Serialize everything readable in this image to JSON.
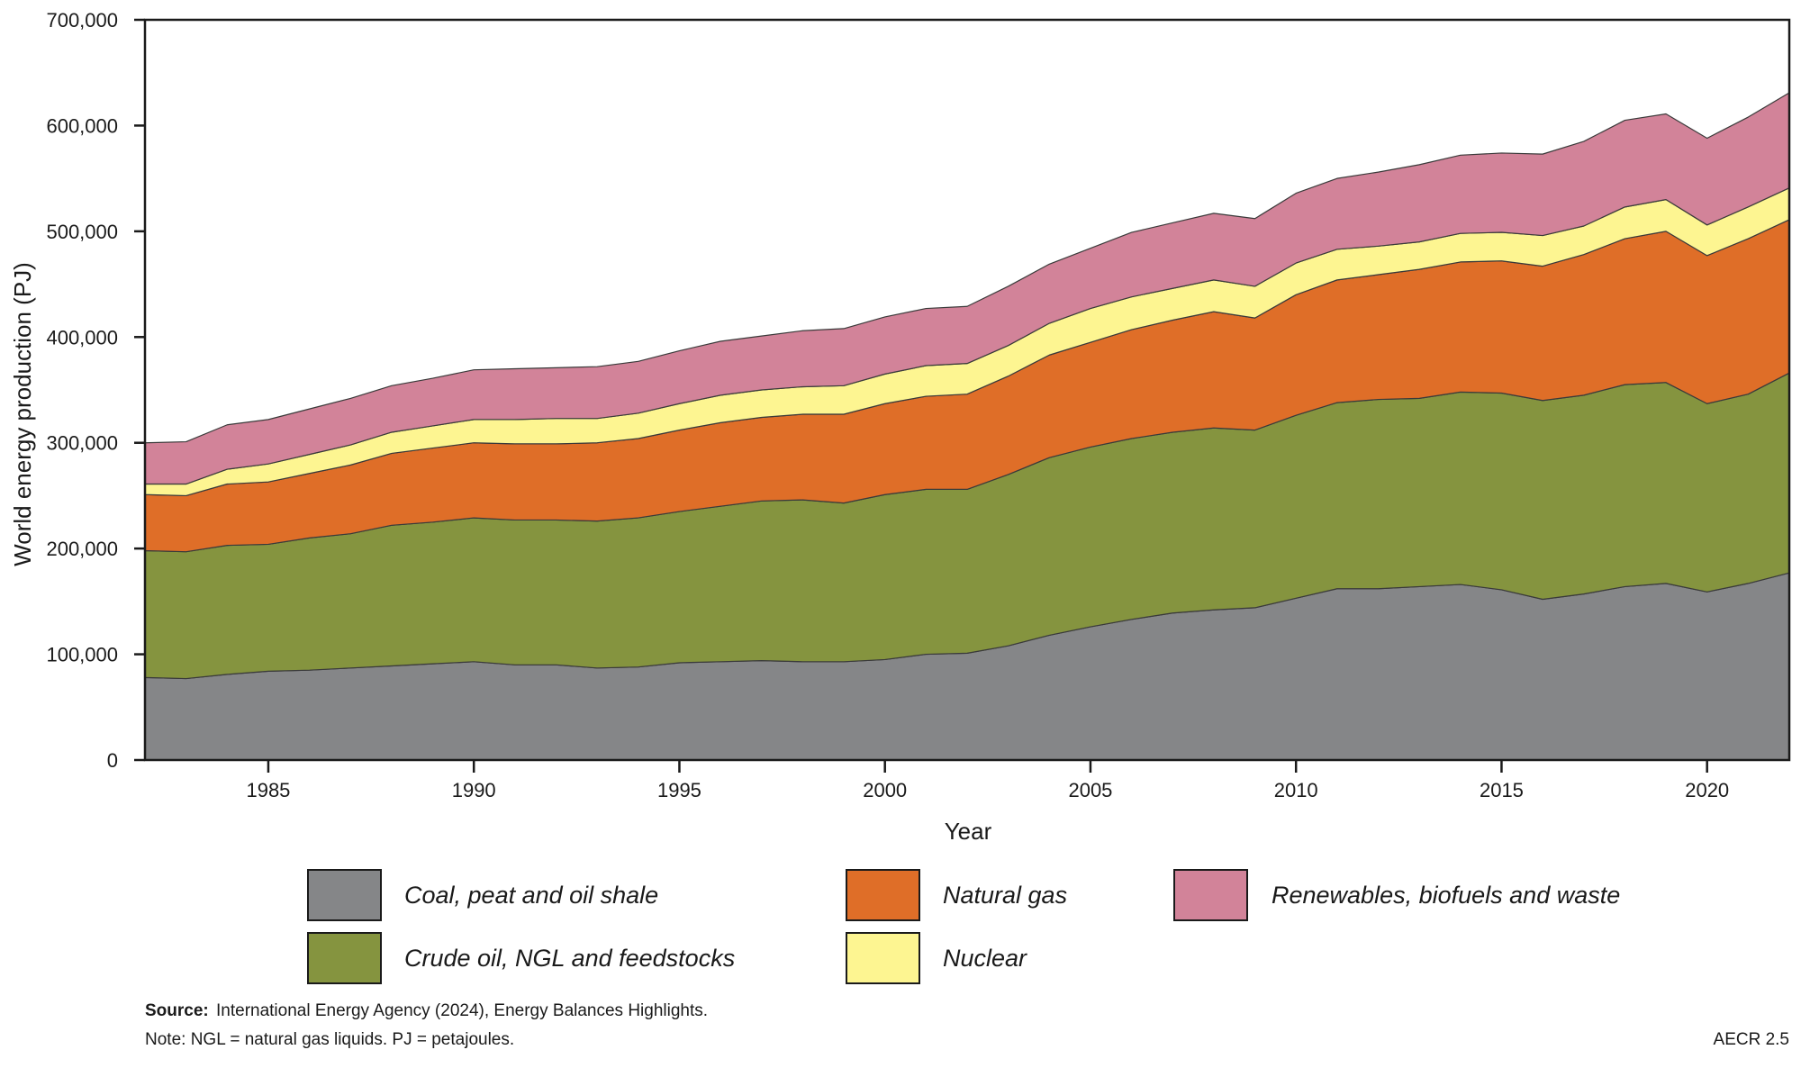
{
  "chart_data": {
    "type": "area",
    "stacked": true,
    "title": "",
    "xlabel": "Year",
    "ylabel": "World energy production (PJ)",
    "xlim": [
      1982,
      2022
    ],
    "ylim": [
      0,
      700000
    ],
    "x_ticks": [
      1985,
      1990,
      1995,
      2000,
      2005,
      2010,
      2015,
      2020
    ],
    "y_ticks": [
      0,
      100000,
      200000,
      300000,
      400000,
      500000,
      600000,
      700000
    ],
    "y_tick_labels": [
      "0",
      "100,000",
      "200,000",
      "300,000",
      "400,000",
      "500,000",
      "600,000",
      "700,000"
    ],
    "grid": false,
    "legend_position": "bottom",
    "x": [
      1982,
      1983,
      1984,
      1985,
      1986,
      1987,
      1988,
      1989,
      1990,
      1991,
      1992,
      1993,
      1994,
      1995,
      1996,
      1997,
      1998,
      1999,
      2000,
      2001,
      2002,
      2003,
      2004,
      2005,
      2006,
      2007,
      2008,
      2009,
      2010,
      2011,
      2012,
      2013,
      2014,
      2015,
      2016,
      2017,
      2018,
      2019,
      2020,
      2021,
      2022
    ],
    "series": [
      {
        "name": "Coal, peat and oil shale",
        "color": "#858688",
        "values": [
          78000,
          77000,
          81000,
          84000,
          85000,
          87000,
          89000,
          91000,
          93000,
          90000,
          90000,
          87000,
          88000,
          92000,
          93000,
          94000,
          93000,
          93000,
          95000,
          100000,
          101000,
          108000,
          118000,
          126000,
          133000,
          139000,
          142000,
          144000,
          153000,
          162000,
          162000,
          164000,
          166000,
          161000,
          152000,
          157000,
          164000,
          167000,
          159000,
          167000,
          177000
        ]
      },
      {
        "name": "Crude oil, NGL and feedstocks",
        "color": "#85943f",
        "values": [
          120000,
          120000,
          122000,
          120000,
          125000,
          127000,
          133000,
          134000,
          136000,
          137000,
          137000,
          139000,
          141000,
          143000,
          147000,
          151000,
          153000,
          150000,
          156000,
          156000,
          155000,
          162000,
          168000,
          170000,
          171000,
          171000,
          172000,
          168000,
          173000,
          176000,
          179000,
          178000,
          182000,
          186000,
          188000,
          188000,
          191000,
          190000,
          178000,
          179000,
          189000
        ]
      },
      {
        "name": "Natural gas",
        "color": "#df6e28",
        "values": [
          53000,
          53000,
          58000,
          59000,
          61000,
          65000,
          68000,
          70000,
          71000,
          72000,
          72000,
          74000,
          75000,
          77000,
          79000,
          79000,
          81000,
          84000,
          86000,
          88000,
          90000,
          93000,
          97000,
          99000,
          103000,
          106000,
          110000,
          106000,
          114000,
          116000,
          118000,
          122000,
          123000,
          125000,
          127000,
          133000,
          138000,
          143000,
          140000,
          147000,
          145000
        ]
      },
      {
        "name": "Nuclear",
        "color": "#fdf591",
        "values": [
          10000,
          11000,
          14000,
          17000,
          18000,
          19000,
          20000,
          21000,
          22000,
          23000,
          24000,
          23000,
          24000,
          25000,
          26000,
          26000,
          26000,
          27000,
          28000,
          29000,
          29000,
          29000,
          30000,
          32000,
          31000,
          30000,
          30000,
          30000,
          30000,
          29000,
          27000,
          26000,
          27000,
          27000,
          29000,
          27000,
          30000,
          30000,
          29000,
          30000,
          30000
        ]
      },
      {
        "name": "Renewables, biofuels and waste",
        "color": "#d28399",
        "values": [
          39000,
          40000,
          42000,
          42000,
          43000,
          44000,
          44000,
          45000,
          47000,
          48000,
          48000,
          49000,
          49000,
          50000,
          51000,
          51000,
          53000,
          54000,
          54000,
          54000,
          54000,
          56000,
          56000,
          57000,
          61000,
          62000,
          63000,
          64000,
          66000,
          67000,
          70000,
          73000,
          74000,
          75000,
          77000,
          80000,
          82000,
          81000,
          82000,
          85000,
          90000
        ]
      }
    ]
  },
  "legend": {
    "items": [
      {
        "label": "Coal, peat and oil shale",
        "color": "#858688"
      },
      {
        "label": "Crude oil, NGL and feedstocks",
        "color": "#85943f"
      },
      {
        "label": "Natural gas",
        "color": "#df6e28"
      },
      {
        "label": "Nuclear",
        "color": "#fdf591"
      },
      {
        "label": "Renewables, biofuels and waste",
        "color": "#d28399"
      }
    ]
  },
  "footer": {
    "source_label": "Source:",
    "source_text": " International Energy Agency (2024), Energy Balances Highlights.",
    "note": "Note: NGL = natural gas liquids. PJ = petajoules.",
    "figure_id": "AECR 2.5"
  }
}
